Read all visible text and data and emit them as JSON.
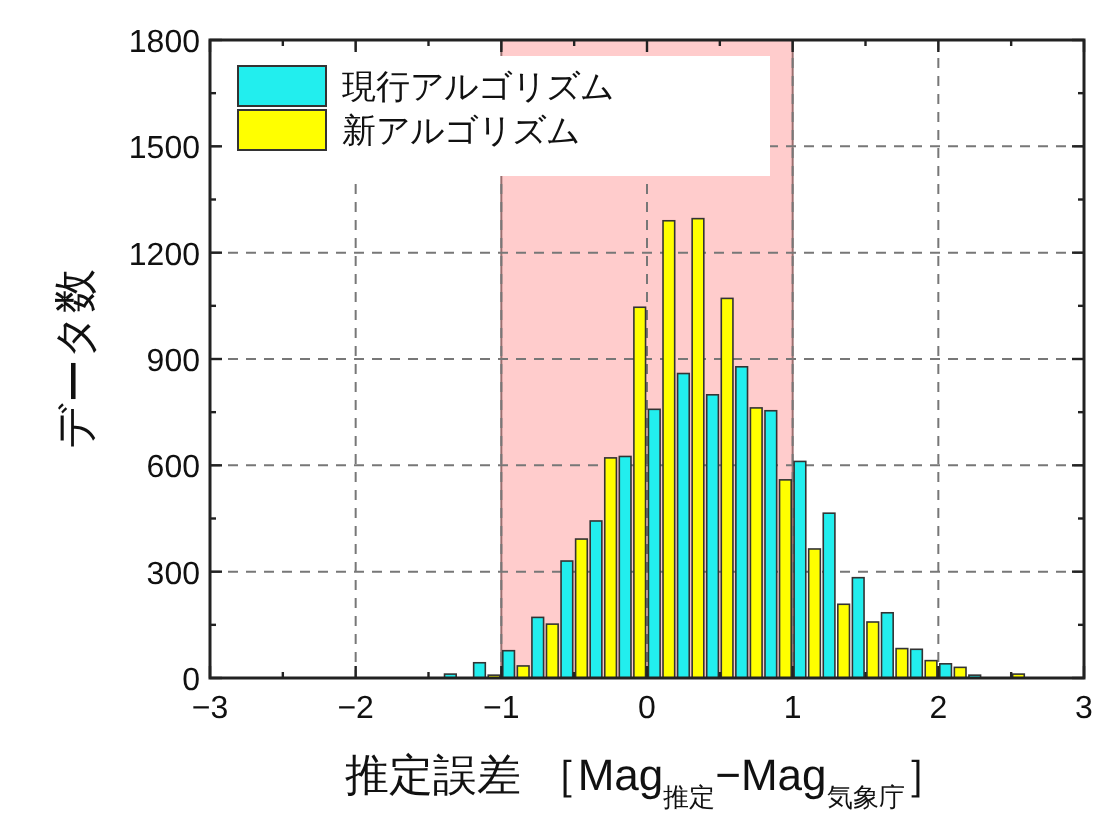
{
  "chart_data": {
    "type": "histogram",
    "xlabel": "推定誤差 ［Mag$_{推定}$−Mag$_{気象庁}$］",
    "ylabel": "データ数",
    "bins": [
      -1.4,
      -1.2,
      -1.0,
      -0.8,
      -0.6,
      -0.4,
      -0.2,
      0,
      0.2,
      0.4,
      0.6,
      0.8,
      1.0,
      1.2,
      1.4,
      1.6,
      1.8,
      2.0,
      2.2,
      2.4,
      2.6,
      2.8
    ],
    "series": [
      {
        "name": "現行アルゴリズム",
        "color": "#22eeee",
        "values": [
          11,
          43,
          77,
          171,
          330,
          443,
          625,
          758,
          859,
          799,
          878,
          754,
          611,
          465,
          283,
          184,
          81,
          40,
          8,
          0,
          0
        ]
      },
      {
        "name": "新アルゴリズム",
        "color": "#ffff00",
        "values": [
          null,
          8,
          34,
          152,
          392,
          621,
          1046,
          1290,
          1296,
          1071,
          762,
          559,
          364,
          208,
          158,
          83,
          49,
          30,
          null,
          11,
          null
        ]
      }
    ],
    "xlim": [
      -3,
      3
    ],
    "xticks": [
      -3,
      -2,
      -1,
      0,
      1,
      2,
      3
    ],
    "ylim": [
      0,
      1800
    ],
    "yticks": [
      0,
      300,
      600,
      900,
      1200,
      1500,
      1800
    ],
    "bands": [
      {
        "axis": "x",
        "from": -1,
        "to": 1,
        "color": "#ffcccc"
      }
    ],
    "grid": true,
    "legend": "top left"
  }
}
